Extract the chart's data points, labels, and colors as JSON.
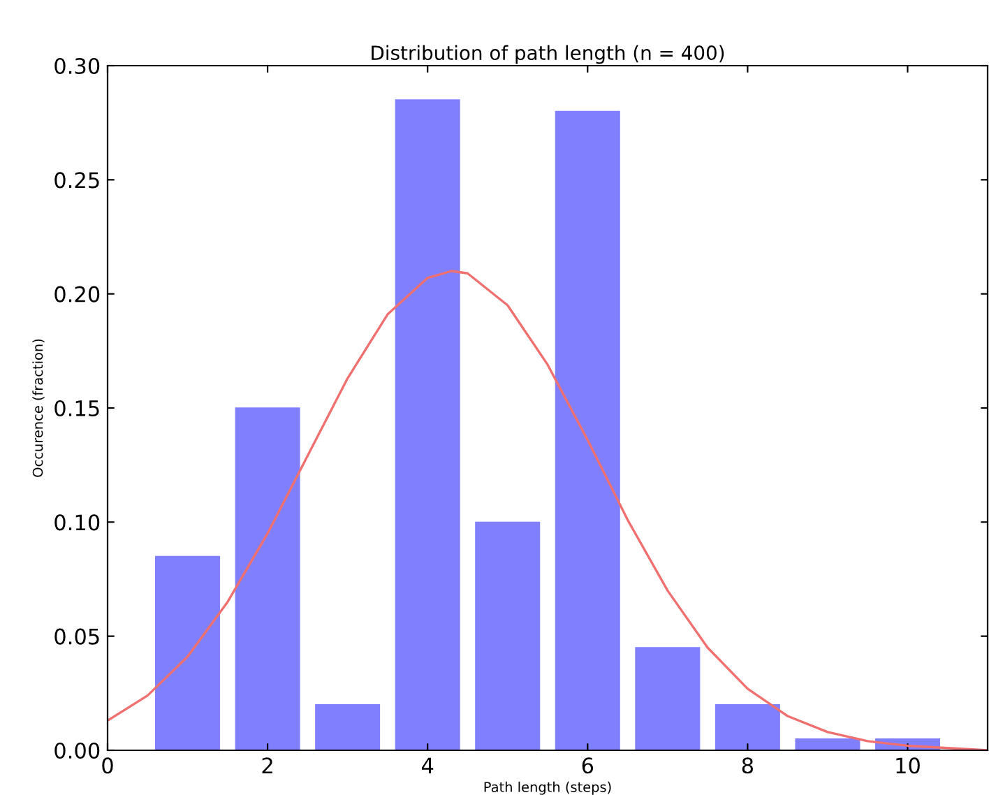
{
  "chart_data": {
    "type": "bar",
    "title": "Distribution of path length (n = 400)",
    "xlabel": "Path length (steps)",
    "ylabel": "Occurence (fraction)",
    "series": [
      {
        "color": "#8080ff",
        "x": [
          1,
          2,
          3,
          4,
          5,
          6,
          7,
          8,
          9,
          10
        ],
        "values": [
          0.085,
          0.15,
          0.02,
          0.285,
          0.1,
          0.28,
          0.045,
          0.02,
          0.005,
          0.005
        ]
      },
      {
        "type": "line",
        "color": "#f07070",
        "x": [
          0,
          0.5,
          1,
          1.5,
          2,
          2.5,
          3,
          3.5,
          4,
          4.3,
          4.5,
          5,
          5.5,
          6,
          6.5,
          7,
          7.5,
          8,
          8.5,
          9,
          9.5,
          10,
          11
        ],
        "values": [
          0.013,
          0.024,
          0.041,
          0.065,
          0.095,
          0.129,
          0.163,
          0.191,
          0.207,
          0.21,
          0.209,
          0.195,
          0.169,
          0.136,
          0.101,
          0.07,
          0.045,
          0.027,
          0.015,
          0.008,
          0.004,
          0.002,
          0.0
        ]
      }
    ],
    "xlim": [
      0,
      11
    ],
    "xticks": [
      0,
      2,
      4,
      6,
      8,
      10
    ],
    "ylim": [
      0,
      0.3
    ],
    "yticks": [
      {
        "value": 0,
        "label": "0.00"
      },
      {
        "value": 0.05,
        "label": "0.05"
      },
      {
        "value": 0.1,
        "label": "0.10"
      },
      {
        "value": 0.15,
        "label": "0.15"
      },
      {
        "value": 0.2,
        "label": "0.20"
      },
      {
        "value": 0.25,
        "label": "0.25"
      },
      {
        "value": 0.3,
        "label": "0.30"
      }
    ],
    "grid": false,
    "legend": false
  }
}
